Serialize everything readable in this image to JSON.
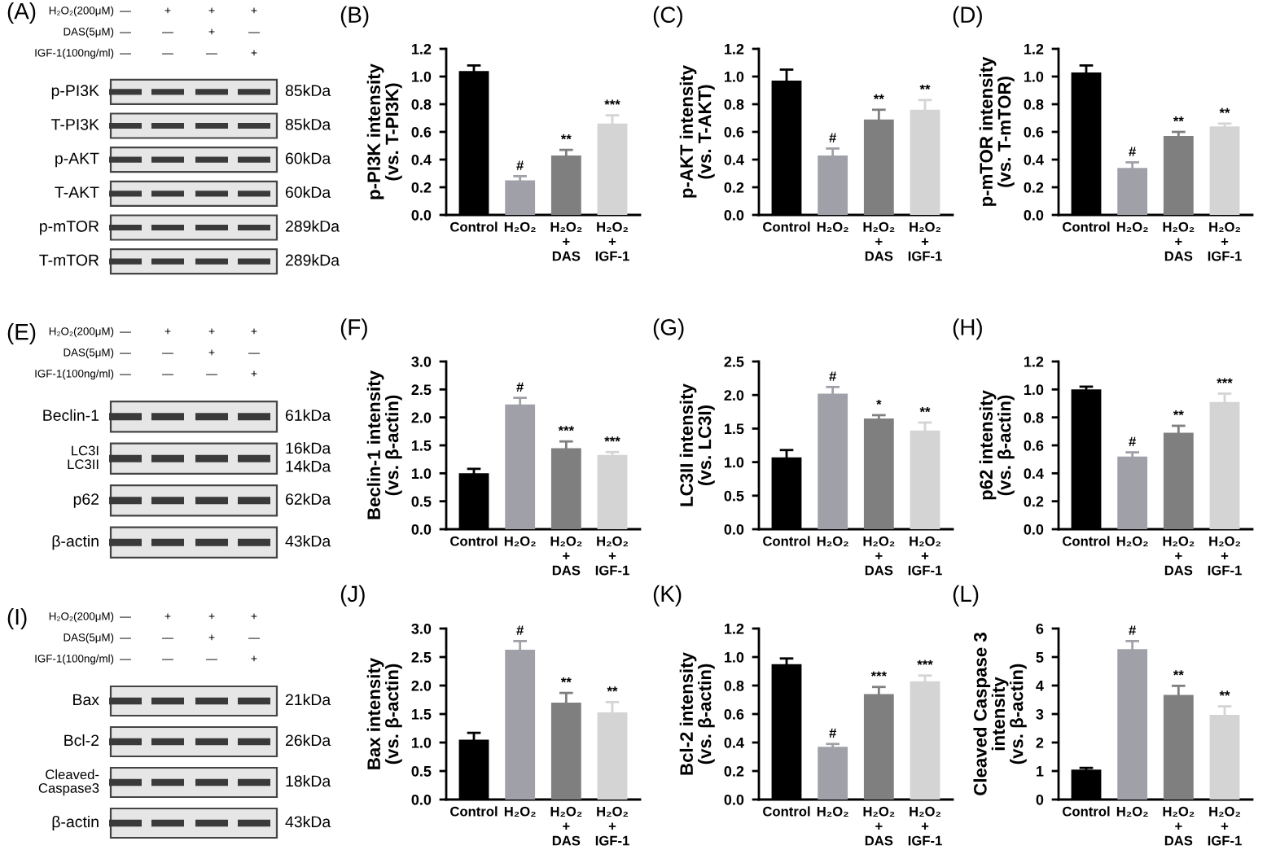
{
  "chart_data": [
    {
      "type": "other",
      "title": "(A)",
      "annotations": [
        "H₂O₂(200μM)",
        "DAS(5μM)",
        "IGF-1(100ng/ml)",
        "—",
        "+",
        "+",
        "+",
        "—",
        "—",
        "+",
        "—",
        "—",
        "—",
        "—",
        "+",
        "p-PI3K",
        "85kDa",
        "T-PI3K",
        "85kDa",
        "p-AKT",
        "60kDa",
        "T-AKT",
        "60kDa",
        "p-mTOR",
        "289kDa",
        "T-mTOR",
        "289kDa"
      ]
    },
    {
      "type": "bar",
      "title": "(B)",
      "ylabel": "p-PI3K intensity\n(vs. T-PI3K)",
      "categories": [
        "Control",
        "H₂O₂",
        "H₂O₂\n+\nDAS",
        "H₂O₂\n+\nIGF-1"
      ],
      "values": [
        1.04,
        0.25,
        0.43,
        0.66
      ],
      "errors": [
        0.04,
        0.03,
        0.04,
        0.06
      ],
      "value_labels": [
        null,
        "#",
        "**",
        "***"
      ],
      "colors": [
        "#000000",
        "#a0a1a8",
        "#7f7f7f",
        "#d4d4d4"
      ],
      "ylim": [
        0,
        1.2
      ],
      "yticks": [
        {
          "value": 0,
          "label": "0.0"
        },
        {
          "value": 0.2,
          "label": "0.2"
        },
        {
          "value": 0.4,
          "label": "0.4"
        },
        {
          "value": 0.6,
          "label": "0.6"
        },
        {
          "value": 0.8,
          "label": "0.8"
        },
        {
          "value": 1.0,
          "label": "1.0"
        },
        {
          "value": 1.2,
          "label": "1.2"
        }
      ]
    },
    {
      "type": "bar",
      "title": "(C)",
      "ylabel": "p-AKT intensity\n(vs. T-AKT)",
      "categories": [
        "Control",
        "H₂O₂",
        "H₂O₂\n+\nDAS",
        "H₂O₂\n+\nIGF-1"
      ],
      "values": [
        0.97,
        0.43,
        0.69,
        0.76
      ],
      "errors": [
        0.08,
        0.05,
        0.07,
        0.07
      ],
      "value_labels": [
        null,
        "#",
        "**",
        "**"
      ],
      "colors": [
        "#000000",
        "#a0a1a8",
        "#7f7f7f",
        "#d4d4d4"
      ],
      "ylim": [
        0,
        1.2
      ],
      "yticks": [
        {
          "value": 0,
          "label": "0.0"
        },
        {
          "value": 0.2,
          "label": "0.2"
        },
        {
          "value": 0.4,
          "label": "0.4"
        },
        {
          "value": 0.6,
          "label": "0.6"
        },
        {
          "value": 0.8,
          "label": "0.8"
        },
        {
          "value": 1.0,
          "label": "1.0"
        },
        {
          "value": 1.2,
          "label": "1.2"
        }
      ]
    },
    {
      "type": "bar",
      "title": "(D)",
      "ylabel": "p-mTOR intensity\n(vs. T-mTOR)",
      "categories": [
        "Control",
        "H₂O₂",
        "H₂O₂\n+\nDAS",
        "H₂O₂\n+\nIGF-1"
      ],
      "values": [
        1.03,
        0.34,
        0.57,
        0.64
      ],
      "errors": [
        0.05,
        0.04,
        0.03,
        0.02
      ],
      "value_labels": [
        null,
        "#",
        "**",
        "**"
      ],
      "colors": [
        "#000000",
        "#a0a1a8",
        "#7f7f7f",
        "#d4d4d4"
      ],
      "ylim": [
        0,
        1.2
      ],
      "yticks": [
        {
          "value": 0,
          "label": "0.0"
        },
        {
          "value": 0.2,
          "label": "0.2"
        },
        {
          "value": 0.4,
          "label": "0.4"
        },
        {
          "value": 0.6,
          "label": "0.6"
        },
        {
          "value": 0.8,
          "label": "0.8"
        },
        {
          "value": 1.0,
          "label": "1.0"
        },
        {
          "value": 1.2,
          "label": "1.2"
        }
      ]
    },
    {
      "type": "other",
      "title": "(E)",
      "annotations": [
        "H₂O₂(200μM)",
        "DAS(5μM)",
        "IGF-1(100ng/ml)",
        "—",
        "+",
        "+",
        "+",
        "—",
        "—",
        "+",
        "—",
        "—",
        "—",
        "—",
        "+",
        "Beclin-1",
        "61kDa",
        "LC3I\nLC3II",
        "16kDa\n14kDa",
        "p62",
        "62kDa",
        "β-actin",
        "43kDa"
      ]
    },
    {
      "type": "bar",
      "title": "(F)",
      "ylabel": "Beclin-1 intensity\n(vs. β-actin)",
      "categories": [
        "Control",
        "H₂O₂",
        "H₂O₂\n+\nDAS",
        "H₂O₂\n+\nIGF-1"
      ],
      "values": [
        1.0,
        2.23,
        1.45,
        1.33
      ],
      "errors": [
        0.08,
        0.12,
        0.12,
        0.05
      ],
      "value_labels": [
        null,
        "#",
        "***",
        "***"
      ],
      "colors": [
        "#000000",
        "#a0a1a8",
        "#7f7f7f",
        "#d4d4d4"
      ],
      "ylim": [
        0,
        3.0
      ],
      "yticks": [
        {
          "value": 0,
          "label": "0.0"
        },
        {
          "value": 0.5,
          "label": "0.5"
        },
        {
          "value": 1.0,
          "label": "1.0"
        },
        {
          "value": 1.5,
          "label": "1.5"
        },
        {
          "value": 2.0,
          "label": "2.0"
        },
        {
          "value": 2.5,
          "label": "2.5"
        },
        {
          "value": 3.0,
          "label": "3.0"
        }
      ]
    },
    {
      "type": "bar",
      "title": "(G)",
      "ylabel": "LC3II intensity\n(vs. LC3I)",
      "categories": [
        "Control",
        "H₂O₂",
        "H₂O₂\n+\nDAS",
        "H₂O₂\n+\nIGF-1"
      ],
      "values": [
        1.07,
        2.02,
        1.65,
        1.47
      ],
      "errors": [
        0.11,
        0.1,
        0.05,
        0.12
      ],
      "value_labels": [
        null,
        "#",
        "*",
        "**"
      ],
      "colors": [
        "#000000",
        "#a0a1a8",
        "#7f7f7f",
        "#d4d4d4"
      ],
      "ylim": [
        0,
        2.5
      ],
      "yticks": [
        {
          "value": 0,
          "label": "0.0"
        },
        {
          "value": 0.5,
          "label": "0.5"
        },
        {
          "value": 1.0,
          "label": "1.0"
        },
        {
          "value": 1.5,
          "label": "1.5"
        },
        {
          "value": 2.0,
          "label": "2.0"
        },
        {
          "value": 2.5,
          "label": "2.5"
        }
      ]
    },
    {
      "type": "bar",
      "title": "(H)",
      "ylabel": "p62 intensity\n(vs. β-actin)",
      "categories": [
        "Control",
        "H₂O₂",
        "H₂O₂\n+\nDAS",
        "H₂O₂\n+\nIGF-1"
      ],
      "values": [
        1.0,
        0.52,
        0.69,
        0.91
      ],
      "errors": [
        0.02,
        0.03,
        0.05,
        0.06
      ],
      "value_labels": [
        null,
        "#",
        "**",
        "***"
      ],
      "colors": [
        "#000000",
        "#a0a1a8",
        "#7f7f7f",
        "#d4d4d4"
      ],
      "ylim": [
        0,
        1.2
      ],
      "yticks": [
        {
          "value": 0,
          "label": "0.0"
        },
        {
          "value": 0.2,
          "label": "0.2"
        },
        {
          "value": 0.4,
          "label": "0.4"
        },
        {
          "value": 0.6,
          "label": "0.6"
        },
        {
          "value": 0.8,
          "label": "0.8"
        },
        {
          "value": 1.0,
          "label": "1.0"
        },
        {
          "value": 1.2,
          "label": "1.2"
        }
      ]
    },
    {
      "type": "other",
      "title": "(I)",
      "annotations": [
        "H₂O₂(200μM)",
        "DAS(5μM)",
        "IGF-1(100ng/ml)",
        "—",
        "+",
        "+",
        "+",
        "—",
        "—",
        "+",
        "—",
        "—",
        "—",
        "—",
        "+",
        "Bax",
        "21kDa",
        "Bcl-2",
        "26kDa",
        "Cleaved-\nCaspase3",
        "18kDa",
        "β-actin",
        "43kDa"
      ]
    },
    {
      "type": "bar",
      "title": "(J)",
      "ylabel": "Bax intensity\n(vs. β-actin)",
      "categories": [
        "Control",
        "H₂O₂",
        "H₂O₂\n+\nDAS",
        "H₂O₂\n+\nIGF-1"
      ],
      "values": [
        1.05,
        2.63,
        1.7,
        1.53
      ],
      "errors": [
        0.12,
        0.15,
        0.17,
        0.18
      ],
      "value_labels": [
        null,
        "#",
        "**",
        "**"
      ],
      "colors": [
        "#000000",
        "#a0a1a8",
        "#7f7f7f",
        "#d4d4d4"
      ],
      "ylim": [
        0,
        3.0
      ],
      "yticks": [
        {
          "value": 0,
          "label": "0.0"
        },
        {
          "value": 0.5,
          "label": "0.5"
        },
        {
          "value": 1.0,
          "label": "1.0"
        },
        {
          "value": 1.5,
          "label": "1.5"
        },
        {
          "value": 2.0,
          "label": "2.0"
        },
        {
          "value": 2.5,
          "label": "2.5"
        },
        {
          "value": 3.0,
          "label": "3.0"
        }
      ]
    },
    {
      "type": "bar",
      "title": "(K)",
      "ylabel": "Bcl-2 intensity\n(vs. β-actin)",
      "categories": [
        "Control",
        "H₂O₂",
        "H₂O₂\n+\nDAS",
        "H₂O₂\n+\nIGF-1"
      ],
      "values": [
        0.95,
        0.37,
        0.74,
        0.83
      ],
      "errors": [
        0.04,
        0.02,
        0.05,
        0.04
      ],
      "value_labels": [
        null,
        "#",
        "***",
        "***"
      ],
      "colors": [
        "#000000",
        "#a0a1a8",
        "#7f7f7f",
        "#d4d4d4"
      ],
      "ylim": [
        0,
        1.2
      ],
      "yticks": [
        {
          "value": 0,
          "label": "0.0"
        },
        {
          "value": 0.2,
          "label": "0.2"
        },
        {
          "value": 0.4,
          "label": "0.4"
        },
        {
          "value": 0.6,
          "label": "0.6"
        },
        {
          "value": 0.8,
          "label": "0.8"
        },
        {
          "value": 1.0,
          "label": "1.0"
        },
        {
          "value": 1.2,
          "label": "1.2"
        }
      ]
    },
    {
      "type": "bar",
      "title": "(L)",
      "ylabel": "Cleaved Caspase 3\nintensity\n(vs. β-actin)",
      "categories": [
        "Control",
        "H₂O₂",
        "H₂O₂\n+\nDAS",
        "H₂O₂\n+\nIGF-1"
      ],
      "values": [
        1.05,
        5.28,
        3.67,
        2.97
      ],
      "errors": [
        0.06,
        0.28,
        0.32,
        0.3
      ],
      "value_labels": [
        null,
        "#",
        "**",
        "**"
      ],
      "colors": [
        "#000000",
        "#a0a1a8",
        "#7f7f7f",
        "#d4d4d4"
      ],
      "ylim": [
        0,
        6
      ],
      "yticks": [
        0,
        1,
        2,
        3,
        4,
        5,
        6
      ]
    }
  ]
}
